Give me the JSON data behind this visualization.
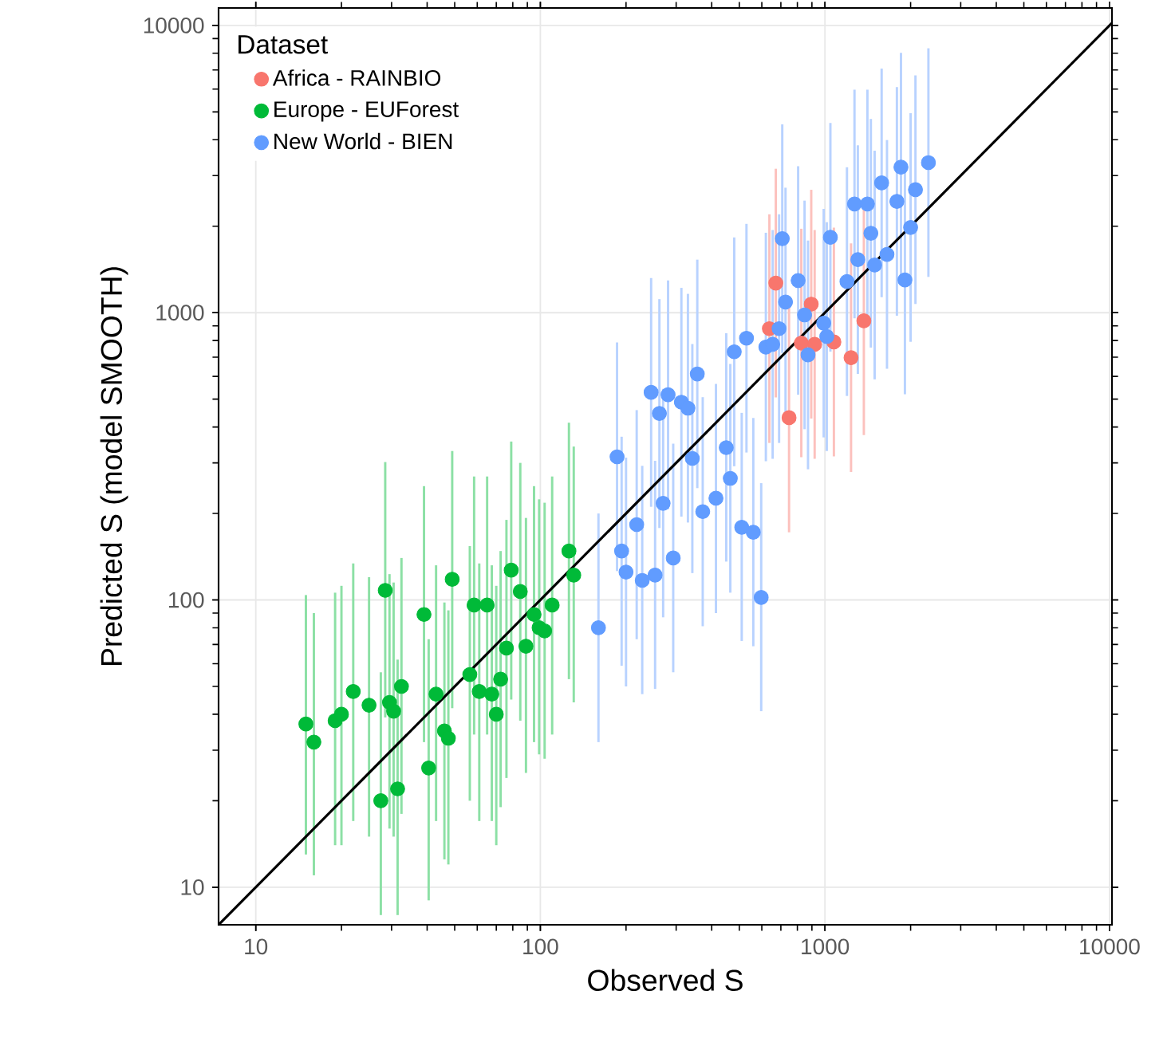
{
  "chart_data": {
    "type": "scatter",
    "xlabel": "Observed S",
    "ylabel": "Predicted S (model SMOOTH)",
    "legend_title": "Dataset",
    "log": "xy",
    "grid": true,
    "legend": "top left",
    "xlim": [
      7.4,
      10200
    ],
    "ylim": [
      7.4,
      11500
    ],
    "xticks": [
      10,
      100,
      1000,
      10000
    ],
    "yticks": [
      10,
      100,
      1000,
      10000
    ],
    "series": [
      {
        "name": "Africa - RAINBIO",
        "color": "#f8766d",
        "marker": "circle",
        "x": [
          672,
          638,
          748,
          895,
          826,
          920,
          1075,
          1235,
          1370
        ],
        "values": [
          1268,
          880,
          431,
          1071,
          784,
          776,
          791,
          697,
          937
        ],
        "errors": [
          [
            507,
            3170
          ],
          [
            352,
            2200
          ],
          [
            172,
            1078
          ],
          [
            428,
            2678
          ],
          [
            314,
            1960
          ],
          [
            310,
            1940
          ],
          [
            316,
            1978
          ],
          [
            279,
            1743
          ],
          [
            375,
            2343
          ]
        ]
      },
      {
        "name": "Europe - EUForest",
        "color": "#00ba38",
        "marker": "circle",
        "x": [
          15,
          16,
          19,
          20,
          22,
          25,
          28.5,
          29.5,
          30.5,
          32.5,
          27.5,
          31.5,
          39,
          40.5,
          43,
          46,
          47.5,
          49,
          58.5,
          56.5,
          61,
          65,
          67.5,
          70,
          72.5,
          76,
          79,
          85,
          89,
          95,
          99,
          103.5,
          110,
          126,
          131
        ],
        "values": [
          37,
          32,
          38,
          40,
          48,
          43,
          108,
          44,
          41,
          50,
          20,
          22,
          89,
          26,
          47,
          35,
          33,
          118,
          96,
          55,
          48,
          96,
          47,
          40,
          53,
          68,
          127,
          107,
          69,
          89,
          80,
          78,
          96,
          148,
          122
        ],
        "errors": [
          [
            13,
            104
          ],
          [
            11,
            90
          ],
          [
            14,
            106
          ],
          [
            14,
            112
          ],
          [
            17,
            134
          ],
          [
            15,
            120
          ],
          [
            39,
            302
          ],
          [
            16,
            123
          ],
          [
            15,
            115
          ],
          [
            18,
            140
          ],
          [
            8,
            56
          ],
          [
            8,
            62
          ],
          [
            32,
            249
          ],
          [
            9,
            73
          ],
          [
            17,
            132
          ],
          [
            12.5,
            98
          ],
          [
            12,
            92
          ],
          [
            42,
            330
          ],
          [
            34,
            269
          ],
          [
            20,
            154
          ],
          [
            17,
            134
          ],
          [
            34,
            269
          ],
          [
            17,
            132
          ],
          [
            14,
            112
          ],
          [
            19,
            148
          ],
          [
            24,
            190
          ],
          [
            45,
            356
          ],
          [
            38,
            300
          ],
          [
            25,
            193
          ],
          [
            32,
            249
          ],
          [
            29,
            224
          ],
          [
            28,
            218
          ],
          [
            34,
            269
          ],
          [
            53,
            414
          ],
          [
            44,
            342
          ]
        ]
      },
      {
        "name": "New World - BIEN",
        "color": "#619cff",
        "marker": "circle",
        "x": [
          160,
          186,
          193,
          200,
          228,
          218,
          245,
          262,
          281,
          270,
          253,
          293,
          313,
          330,
          342,
          356,
          372,
          414,
          450,
          465,
          510,
          560,
          597,
          480,
          530,
          620,
          655,
          727,
          690,
          805,
          848,
          872,
          990,
          1015,
          1045,
          1195,
          1270,
          1305,
          1410,
          1450,
          1582,
          1652,
          1790,
          1850,
          1910,
          2080,
          2310,
          2000,
          1495,
          708
        ],
        "values": [
          80,
          315,
          148,
          125,
          117,
          183,
          528,
          446,
          518,
          217,
          122,
          140,
          488,
          465,
          311,
          612,
          203,
          226,
          339,
          265,
          179,
          172,
          102,
          731,
          815,
          759,
          776,
          1089,
          880,
          1294,
          982,
          713,
          919,
          826,
          1830,
          1283,
          2390,
          1530,
          2390,
          1890,
          2830,
          1596,
          2440,
          3210,
          1300,
          2680,
          3330,
          1980,
          1465,
          1810
        ],
        "errors": [
          [
            32,
            200
          ],
          [
            126,
            788
          ],
          [
            59,
            370
          ],
          [
            50,
            313
          ],
          [
            47,
            293
          ],
          [
            73,
            458
          ],
          [
            211,
            1320
          ],
          [
            178,
            1115
          ],
          [
            207,
            1295
          ],
          [
            87,
            543
          ],
          [
            49,
            305
          ],
          [
            56,
            350
          ],
          [
            195,
            1220
          ],
          [
            186,
            1163
          ],
          [
            124,
            778
          ],
          [
            245,
            1530
          ],
          [
            81,
            508
          ],
          [
            90,
            565
          ],
          [
            136,
            848
          ],
          [
            106,
            663
          ],
          [
            72,
            448
          ],
          [
            69,
            430
          ],
          [
            41,
            255
          ],
          [
            292,
            1828
          ],
          [
            326,
            2038
          ],
          [
            304,
            1898
          ],
          [
            310,
            1940
          ],
          [
            436,
            2723
          ],
          [
            352,
            2200
          ],
          [
            518,
            3235
          ],
          [
            393,
            2455
          ],
          [
            285,
            1783
          ],
          [
            368,
            2298
          ],
          [
            330,
            2065
          ],
          [
            732,
            4575
          ],
          [
            513,
            3208
          ],
          [
            956,
            5975
          ],
          [
            612,
            3825
          ],
          [
            956,
            5975
          ],
          [
            756,
            4725
          ],
          [
            1132,
            7075
          ],
          [
            638,
            3990
          ],
          [
            976,
            6100
          ],
          [
            1284,
            8025
          ],
          [
            520,
            3250
          ],
          [
            1072,
            6700
          ],
          [
            1332,
            8325
          ],
          [
            792,
            4950
          ],
          [
            586,
            3663
          ],
          [
            724,
            4525
          ]
        ]
      },
      {
        "type": "line",
        "color": "#000000",
        "marker": "none",
        "x": [
          7.4,
          10200
        ],
        "values": [
          7.4,
          10200
        ]
      }
    ]
  }
}
